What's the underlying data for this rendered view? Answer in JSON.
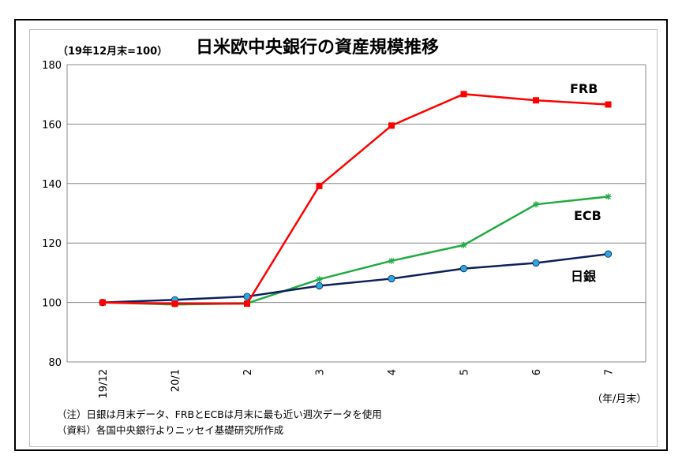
{
  "chart_data": {
    "type": "line",
    "title": "日米欧中央銀行の資産規模推移",
    "unit_note": "（19年12月末=100）",
    "xlabel": "（年/月末）",
    "ylabel": "",
    "categories": [
      "19/12",
      "20/1",
      "2",
      "3",
      "4",
      "5",
      "6",
      "7"
    ],
    "ylim": [
      80,
      180
    ],
    "yticks": [
      80,
      100,
      120,
      140,
      160,
      180
    ],
    "grid": true,
    "legend": "inline labels near line ends",
    "series": [
      {
        "name": "FRB",
        "color": "#ff0000",
        "marker": "square",
        "values": [
          100,
          99.6,
          99.6,
          139.2,
          159.5,
          170.1,
          168.0,
          166.6
        ]
      },
      {
        "name": "ECB",
        "color": "#22aa44",
        "marker": "asterisk",
        "values": [
          100,
          99.3,
          99.7,
          107.8,
          114.0,
          119.3,
          133.0,
          135.6
        ]
      },
      {
        "name": "日銀",
        "color": "#0d1f5c",
        "marker": "circle",
        "marker_color": "#29a8e0",
        "values": [
          100,
          100.9,
          102.0,
          105.6,
          108.0,
          111.4,
          113.3,
          116.3
        ]
      }
    ],
    "notes": [
      "（注）日銀は月末データ、FRBとECBは月末に最も近い週次データを使用",
      "（資料）各国中央銀行よりニッセイ基礎研究所作成"
    ]
  }
}
